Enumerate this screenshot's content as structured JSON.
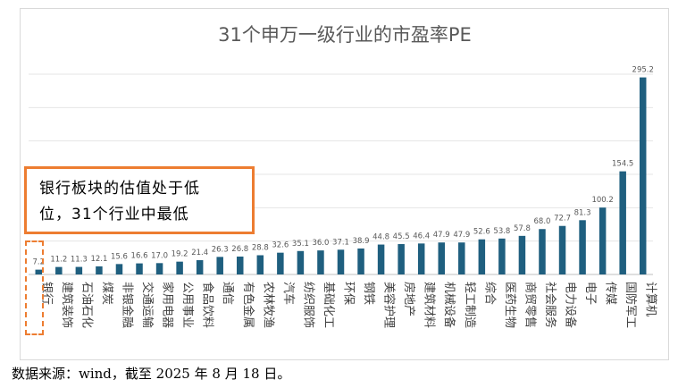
{
  "chart_data": {
    "type": "bar",
    "title": "31个申万一级行业的市盈率PE",
    "xlabel": "",
    "ylabel": "",
    "ylim": [
      0,
      300
    ],
    "grid": true,
    "bar_color": "#1f5f7f",
    "label_color": "#595959",
    "highlight_color": "#ed7d31",
    "categories": [
      "银行",
      "建筑装饰",
      "石油石化",
      "煤炭",
      "非银金融",
      "交通运输",
      "家用电器",
      "公用事业",
      "食品饮料",
      "通信",
      "有色金属",
      "农林牧渔",
      "汽车",
      "纺织服饰",
      "基础化工",
      "环保",
      "钢铁",
      "美容护理",
      "房地产",
      "建筑材料",
      "机械设备",
      "轻工制造",
      "综合",
      "医药生物",
      "商贸零售",
      "社会服务",
      "电力设备",
      "电子",
      "传媒",
      "国防军工",
      "计算机"
    ],
    "values": [
      7.2,
      11.2,
      11.3,
      12.1,
      15.6,
      16.6,
      17.0,
      19.2,
      21.4,
      26.3,
      26.8,
      28.8,
      32.6,
      35.1,
      36.0,
      37.1,
      38.9,
      44.8,
      45.5,
      46.4,
      47.9,
      47.9,
      52.6,
      53.8,
      57.8,
      68.0,
      72.7,
      81.3,
      100.2,
      154.5,
      295.2
    ],
    "value_labels": [
      "7.2",
      "11.2",
      "11.3",
      "12.1",
      "15.6",
      "16.6",
      "17.0",
      "19.2",
      "21.4",
      "26.3",
      "26.8",
      "28.8",
      "32.6",
      "35.1",
      "36.0",
      "37.1",
      "38.9",
      "44.8",
      "45.5",
      "46.4",
      "47.9",
      "47.9",
      "52.6",
      "53.8",
      "57.8",
      "68.0",
      "72.7",
      "81.3",
      "100.2",
      "154.5",
      "295.2"
    ]
  },
  "callout": {
    "line1": "银行板块的估值处于低",
    "line2": "位，31个行业中最低"
  },
  "source": "数据来源：wind，截至 2025 年 8 月 18 日。"
}
